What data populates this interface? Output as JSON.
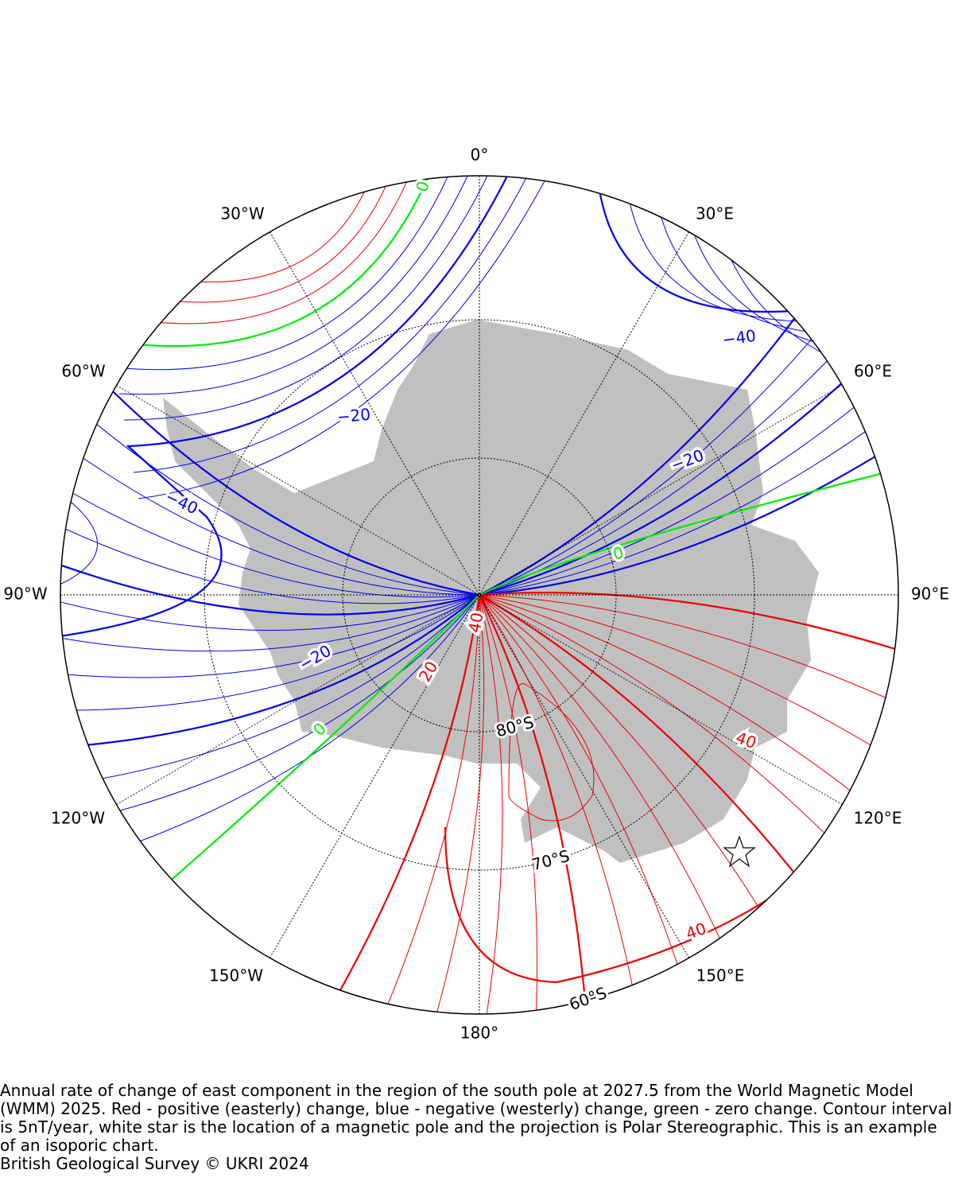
{
  "map": {
    "meridian_labels": [
      "0°",
      "30°E",
      "60°E",
      "90°E",
      "120°E",
      "150°E",
      "180°",
      "150°W",
      "120°W",
      "90°W",
      "60°W",
      "30°W"
    ],
    "parallel_labels": [
      "60°S",
      "70°S",
      "80°S"
    ],
    "contour_labels": [
      "0",
      "−40",
      "−20",
      "−20",
      "−40",
      "0",
      "−20",
      "40",
      "20",
      "0",
      "40",
      "40"
    ],
    "caption": "Annual rate of change of east component in the region of the south pole at 2027.5 from the World Magnetic Model (WMM) 2025. Red - positive (easterly) change, blue - negative (westerly) change, green - zero change. Contour interval is 5nT/year, white star is the location of a magnetic pole and the projection is Polar Stereographic. This is an example of an isoporic chart.",
    "credit": "British Geological Survey © UKRI 2024"
  }
}
